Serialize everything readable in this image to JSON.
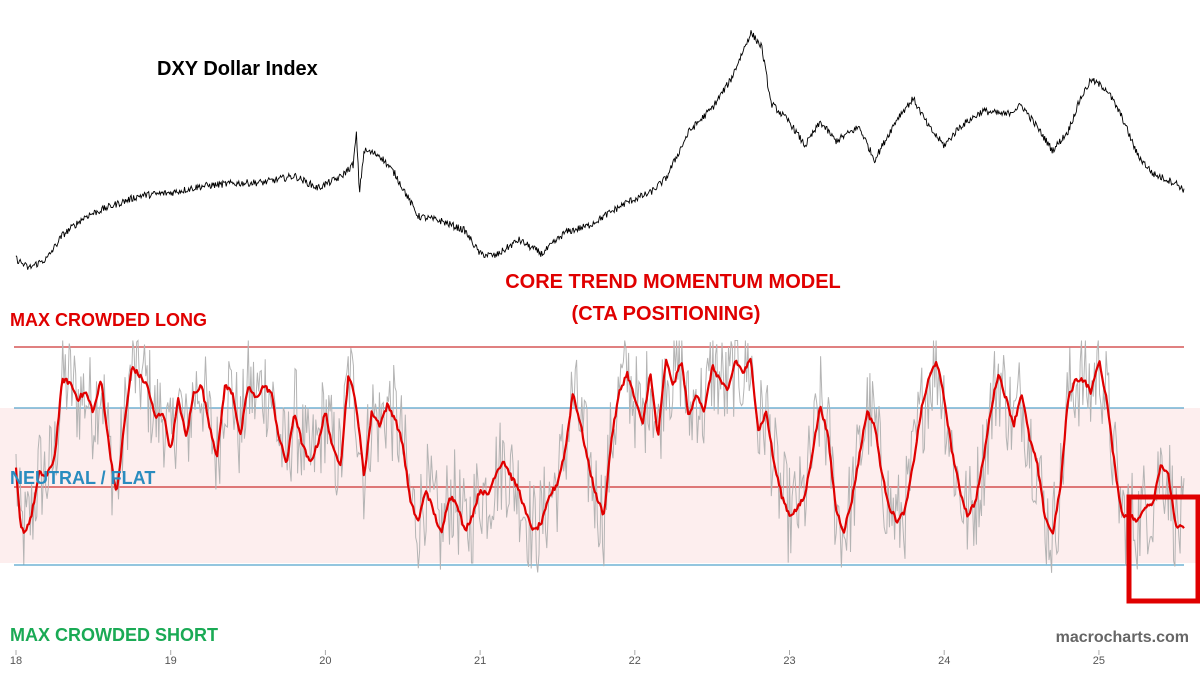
{
  "chart_data": {
    "type": "line",
    "title": "DXY Dollar Index",
    "subtitle": "CORE TREND MOMENTUM MODEL\n(CTA POSITIONING)",
    "watermark": "macrocharts.com",
    "zone_labels": {
      "long": "MAX CROWDED LONG",
      "neutral": "NEUTRAL / FLAT",
      "short": "MAX CROWDED SHORT"
    },
    "x_ticks": [
      "18",
      "19",
      "20",
      "21",
      "22",
      "23",
      "24",
      "25"
    ],
    "x_range": [
      2018.0,
      2025.55
    ],
    "grid": false,
    "colors": {
      "price": "#000000",
      "model": "#e00000",
      "raw": "#b4b4b4",
      "neutral_band": "#fdeeee",
      "blue_lines": "#2a8cbf",
      "red_lines": "#c00000",
      "label_long": "#e00000",
      "label_neutral": "#2a8cbf",
      "label_short": "#1aaa55",
      "highlight_box": "#e00000"
    },
    "series": [
      {
        "key": "dxy",
        "points": [
          [
            2018.0,
            89.5
          ],
          [
            2018.08,
            88.5
          ],
          [
            2018.2,
            89.5
          ],
          [
            2018.3,
            92.0
          ],
          [
            2018.45,
            94.0
          ],
          [
            2018.6,
            95.0
          ],
          [
            2018.8,
            96.2
          ],
          [
            2019.0,
            96.5
          ],
          [
            2019.2,
            97.2
          ],
          [
            2019.4,
            97.5
          ],
          [
            2019.6,
            97.6
          ],
          [
            2019.8,
            98.3
          ],
          [
            2019.95,
            97.0
          ],
          [
            2020.1,
            98.2
          ],
          [
            2020.18,
            99.5
          ],
          [
            2020.2,
            102.8
          ],
          [
            2020.22,
            96.5
          ],
          [
            2020.25,
            101.0
          ],
          [
            2020.35,
            100.5
          ],
          [
            2020.45,
            98.5
          ],
          [
            2020.6,
            94.0
          ],
          [
            2020.75,
            93.5
          ],
          [
            2020.9,
            92.5
          ],
          [
            2021.0,
            90.0
          ],
          [
            2021.1,
            89.8
          ],
          [
            2021.25,
            91.5
          ],
          [
            2021.4,
            90.0
          ],
          [
            2021.55,
            92.3
          ],
          [
            2021.7,
            93.0
          ],
          [
            2021.85,
            94.5
          ],
          [
            2021.95,
            95.5
          ],
          [
            2022.1,
            96.5
          ],
          [
            2022.2,
            98.0
          ],
          [
            2022.35,
            103.0
          ],
          [
            2022.5,
            105.5
          ],
          [
            2022.62,
            108.5
          ],
          [
            2022.75,
            113.5
          ],
          [
            2022.82,
            112.0
          ],
          [
            2022.88,
            106.0
          ],
          [
            2023.0,
            104.0
          ],
          [
            2023.1,
            101.5
          ],
          [
            2023.2,
            104.0
          ],
          [
            2023.3,
            102.0
          ],
          [
            2023.45,
            103.5
          ],
          [
            2023.55,
            100.0
          ],
          [
            2023.7,
            104.5
          ],
          [
            2023.8,
            106.5
          ],
          [
            2023.9,
            103.5
          ],
          [
            2024.0,
            101.5
          ],
          [
            2024.1,
            103.5
          ],
          [
            2024.25,
            105.2
          ],
          [
            2024.4,
            104.8
          ],
          [
            2024.5,
            105.8
          ],
          [
            2024.6,
            103.5
          ],
          [
            2024.7,
            101.0
          ],
          [
            2024.8,
            103.0
          ],
          [
            2024.88,
            106.5
          ],
          [
            2024.95,
            108.5
          ],
          [
            2025.05,
            107.5
          ],
          [
            2025.15,
            104.5
          ],
          [
            2025.25,
            100.5
          ],
          [
            2025.35,
            98.5
          ],
          [
            2025.5,
            97.5
          ],
          [
            2025.55,
            96.8
          ]
        ]
      },
      {
        "key": "core_trend_model",
        "points": [
          [
            2018.0,
            0.1
          ],
          [
            2018.03,
            -0.8
          ],
          [
            2018.06,
            -0.85
          ],
          [
            2018.1,
            -0.6
          ],
          [
            2018.15,
            0.05
          ],
          [
            2018.2,
            0.0
          ],
          [
            2018.25,
            0.3
          ],
          [
            2018.3,
            1.5
          ],
          [
            2018.35,
            1.45
          ],
          [
            2018.4,
            1.2
          ],
          [
            2018.45,
            1.3
          ],
          [
            2018.5,
            1.0
          ],
          [
            2018.55,
            1.5
          ],
          [
            2018.6,
            0.5
          ],
          [
            2018.65,
            -0.3
          ],
          [
            2018.7,
            0.8
          ],
          [
            2018.75,
            1.7
          ],
          [
            2018.8,
            1.55
          ],
          [
            2018.85,
            1.4
          ],
          [
            2018.9,
            0.9
          ],
          [
            2018.95,
            1.0
          ],
          [
            2019.0,
            0.4
          ],
          [
            2019.05,
            1.2
          ],
          [
            2019.1,
            0.6
          ],
          [
            2019.15,
            1.3
          ],
          [
            2019.2,
            1.4
          ],
          [
            2019.25,
            0.8
          ],
          [
            2019.3,
            0.3
          ],
          [
            2019.35,
            1.4
          ],
          [
            2019.4,
            1.3
          ],
          [
            2019.45,
            0.6
          ],
          [
            2019.5,
            1.4
          ],
          [
            2019.55,
            1.2
          ],
          [
            2019.6,
            1.4
          ],
          [
            2019.65,
            1.3
          ],
          [
            2019.7,
            0.6
          ],
          [
            2019.75,
            0.2
          ],
          [
            2019.8,
            1.0
          ],
          [
            2019.85,
            0.5
          ],
          [
            2019.9,
            0.2
          ],
          [
            2019.95,
            0.5
          ],
          [
            2020.0,
            1.0
          ],
          [
            2020.05,
            0.4
          ],
          [
            2020.1,
            0.2
          ],
          [
            2020.15,
            1.6
          ],
          [
            2020.2,
            1.1
          ],
          [
            2020.25,
            0.0
          ],
          [
            2020.3,
            1.0
          ],
          [
            2020.35,
            0.8
          ],
          [
            2020.4,
            1.1
          ],
          [
            2020.45,
            0.9
          ],
          [
            2020.5,
            0.5
          ],
          [
            2020.55,
            -0.4
          ],
          [
            2020.6,
            -0.7
          ],
          [
            2020.65,
            -0.2
          ],
          [
            2020.7,
            -0.55
          ],
          [
            2020.75,
            -0.9
          ],
          [
            2020.8,
            -0.3
          ],
          [
            2020.85,
            -0.4
          ],
          [
            2020.9,
            -0.85
          ],
          [
            2020.95,
            -0.6
          ],
          [
            2021.0,
            -0.2
          ],
          [
            2021.05,
            -0.3
          ],
          [
            2021.1,
            0.05
          ],
          [
            2021.15,
            0.25
          ],
          [
            2021.2,
            0.0
          ],
          [
            2021.25,
            -0.2
          ],
          [
            2021.3,
            -0.6
          ],
          [
            2021.35,
            -0.85
          ],
          [
            2021.4,
            -0.7
          ],
          [
            2021.45,
            -0.3
          ],
          [
            2021.5,
            -0.1
          ],
          [
            2021.55,
            0.4
          ],
          [
            2021.6,
            1.3
          ],
          [
            2021.65,
            0.8
          ],
          [
            2021.7,
            0.2
          ],
          [
            2021.75,
            -0.3
          ],
          [
            2021.8,
            -0.6
          ],
          [
            2021.85,
            0.6
          ],
          [
            2021.9,
            1.3
          ],
          [
            2021.95,
            1.6
          ],
          [
            2022.0,
            1.2
          ],
          [
            2022.05,
            0.8
          ],
          [
            2022.1,
            1.6
          ],
          [
            2022.15,
            0.6
          ],
          [
            2022.2,
            1.8
          ],
          [
            2022.25,
            1.4
          ],
          [
            2022.3,
            1.8
          ],
          [
            2022.35,
            0.9
          ],
          [
            2022.4,
            1.3
          ],
          [
            2022.45,
            1.0
          ],
          [
            2022.5,
            1.7
          ],
          [
            2022.55,
            1.5
          ],
          [
            2022.6,
            1.3
          ],
          [
            2022.65,
            1.8
          ],
          [
            2022.7,
            1.6
          ],
          [
            2022.75,
            1.8
          ],
          [
            2022.8,
            0.7
          ],
          [
            2022.85,
            1.0
          ],
          [
            2022.9,
            0.2
          ],
          [
            2022.95,
            -0.3
          ],
          [
            2023.0,
            -0.6
          ],
          [
            2023.05,
            -0.5
          ],
          [
            2023.1,
            -0.3
          ],
          [
            2023.15,
            0.4
          ],
          [
            2023.2,
            1.1
          ],
          [
            2023.25,
            0.6
          ],
          [
            2023.3,
            -0.5
          ],
          [
            2023.35,
            -0.85
          ],
          [
            2023.4,
            -0.4
          ],
          [
            2023.45,
            0.3
          ],
          [
            2023.5,
            1.0
          ],
          [
            2023.55,
            0.8
          ],
          [
            2023.6,
            0.0
          ],
          [
            2023.65,
            -0.5
          ],
          [
            2023.7,
            -0.7
          ],
          [
            2023.75,
            -0.5
          ],
          [
            2023.8,
            0.2
          ],
          [
            2023.85,
            1.0
          ],
          [
            2023.9,
            1.5
          ],
          [
            2023.95,
            1.8
          ],
          [
            2024.0,
            1.2
          ],
          [
            2024.05,
            0.4
          ],
          [
            2024.1,
            -0.2
          ],
          [
            2024.15,
            -0.6
          ],
          [
            2024.2,
            -0.4
          ],
          [
            2024.25,
            0.2
          ],
          [
            2024.3,
            1.0
          ],
          [
            2024.35,
            1.6
          ],
          [
            2024.4,
            1.2
          ],
          [
            2024.45,
            0.8
          ],
          [
            2024.5,
            1.3
          ],
          [
            2024.55,
            0.6
          ],
          [
            2024.6,
            0.2
          ],
          [
            2024.65,
            -0.6
          ],
          [
            2024.7,
            -0.9
          ],
          [
            2024.75,
            -0.2
          ],
          [
            2024.8,
            1.2
          ],
          [
            2024.85,
            1.5
          ],
          [
            2024.9,
            1.5
          ],
          [
            2024.95,
            1.3
          ],
          [
            2025.0,
            1.8
          ],
          [
            2025.05,
            1.2
          ],
          [
            2025.1,
            0.2
          ],
          [
            2025.15,
            -0.6
          ],
          [
            2025.2,
            -0.6
          ],
          [
            2025.25,
            -0.7
          ],
          [
            2025.3,
            -0.45
          ],
          [
            2025.35,
            -0.4
          ],
          [
            2025.4,
            0.2
          ],
          [
            2025.45,
            0.0
          ],
          [
            2025.5,
            -0.8
          ],
          [
            2025.55,
            -0.78
          ]
        ]
      }
    ]
  }
}
